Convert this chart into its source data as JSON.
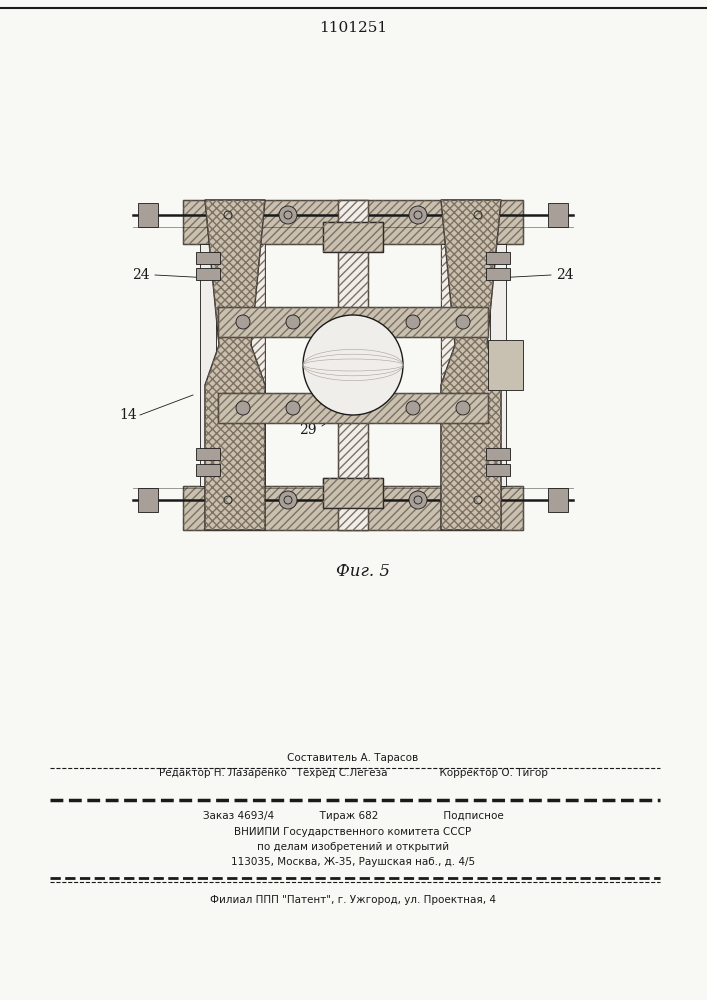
{
  "title_number": "1101251",
  "fig_caption": "Фиг. 5",
  "editor_line": "Редактор Н. Лазаренко   Техред С.Легеза                Корректор О. Тигор",
  "composer_line": "Составитель А. Тарасов",
  "order_line": "Заказ 4693/4              Тираж 682                    Подписное",
  "org_line1": "ВНИИПИ Государственного комитета СССР",
  "org_line2": "по делам изобретений и открытий",
  "org_line3": "113035, Москва, Ж-35, Раушская наб., д. 4/5",
  "branch_line": "Филиал ППП \"Патент\", г. Ужгород, ул. Проектная, 4",
  "label_14": "14",
  "label_24_left": "24",
  "label_24_right": "24",
  "label_29": "29",
  "bg_color": "#f8f8f4",
  "line_color": "#1a1a1a",
  "hatch_color": "#333333"
}
